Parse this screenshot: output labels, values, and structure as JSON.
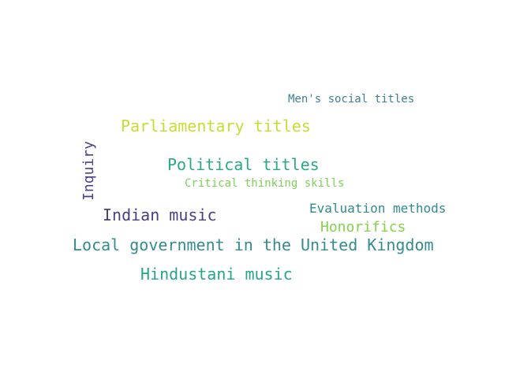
{
  "words": [
    {
      "text": "Men's social titles",
      "color": "#3e7f94"
    },
    {
      "text": "Parliamentary titles",
      "color": "#c8dc34"
    },
    {
      "text": "Political titles",
      "color": "#2aa886"
    },
    {
      "text": "Critical thinking skills",
      "color": "#7dd058"
    },
    {
      "text": "Inquiry",
      "color": "#4b3f86"
    },
    {
      "text": "Indian music",
      "color": "#463f84"
    },
    {
      "text": "Evaluation methods",
      "color": "#2f8a8b"
    },
    {
      "text": "Honorifics",
      "color": "#83d24c"
    },
    {
      "text": "Local government in the United Kingdom",
      "color": "#348a8f"
    },
    {
      "text": "Hindustani music",
      "color": "#26a58a"
    }
  ]
}
